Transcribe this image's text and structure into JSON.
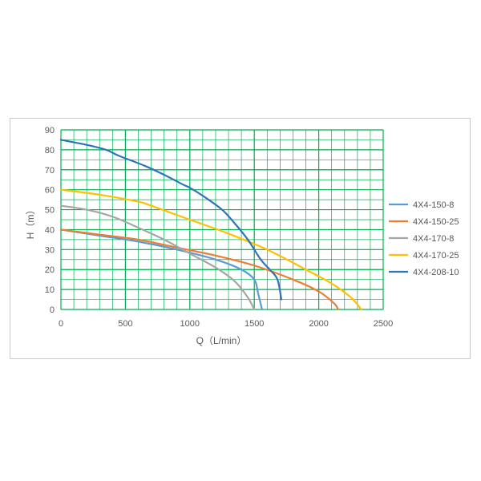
{
  "chart_data": {
    "type": "line",
    "xlabel": "Q（L/min）",
    "ylabel": "H（m）",
    "xlim": [
      0,
      2500
    ],
    "ylim": [
      0,
      90
    ],
    "xticks": [
      0,
      500,
      1000,
      1500,
      2000,
      2500
    ],
    "yticks": [
      0,
      10,
      20,
      30,
      40,
      50,
      60,
      70,
      80,
      90
    ],
    "x_minor_step": 100,
    "y_minor_step": 5,
    "grid": true,
    "grid_color": "#00b050",
    "legend_position": "right",
    "series": [
      {
        "name": "4X4-150-8",
        "color": "#5b9bd5",
        "points": [
          [
            0,
            40
          ],
          [
            300,
            37
          ],
          [
            600,
            34
          ],
          [
            900,
            30
          ],
          [
            1200,
            25
          ],
          [
            1400,
            20
          ],
          [
            1500,
            15
          ],
          [
            1530,
            8
          ],
          [
            1560,
            0
          ]
        ]
      },
      {
        "name": "4X4-150-25",
        "color": "#ed7d31",
        "points": [
          [
            0,
            40
          ],
          [
            300,
            37.5
          ],
          [
            600,
            35
          ],
          [
            900,
            31
          ],
          [
            1200,
            27
          ],
          [
            1500,
            22
          ],
          [
            1800,
            15
          ],
          [
            2000,
            9
          ],
          [
            2120,
            3
          ],
          [
            2150,
            0
          ]
        ]
      },
      {
        "name": "4X4-170-8",
        "color": "#a5a5a5",
        "points": [
          [
            0,
            52
          ],
          [
            200,
            50
          ],
          [
            400,
            46.5
          ],
          [
            600,
            41
          ],
          [
            800,
            35
          ],
          [
            1000,
            28
          ],
          [
            1200,
            21
          ],
          [
            1350,
            14
          ],
          [
            1450,
            6
          ],
          [
            1500,
            0
          ]
        ]
      },
      {
        "name": "4X4-170-25",
        "color": "#ffc000",
        "points": [
          [
            0,
            60
          ],
          [
            300,
            57.5
          ],
          [
            600,
            54
          ],
          [
            700,
            52
          ],
          [
            1000,
            45
          ],
          [
            1300,
            38
          ],
          [
            1600,
            30
          ],
          [
            1900,
            20
          ],
          [
            2100,
            13
          ],
          [
            2250,
            6
          ],
          [
            2330,
            0
          ]
        ]
      },
      {
        "name": "4X4-208-10",
        "color": "#2e75b6",
        "points": [
          [
            0,
            85
          ],
          [
            200,
            82.5
          ],
          [
            350,
            80
          ],
          [
            450,
            77
          ],
          [
            650,
            72
          ],
          [
            800,
            67.5
          ],
          [
            950,
            62.5
          ],
          [
            1000,
            61
          ],
          [
            1100,
            57
          ],
          [
            1250,
            50
          ],
          [
            1350,
            43
          ],
          [
            1450,
            35
          ],
          [
            1550,
            25
          ],
          [
            1620,
            20
          ],
          [
            1680,
            15
          ],
          [
            1710,
            5
          ]
        ]
      }
    ]
  }
}
